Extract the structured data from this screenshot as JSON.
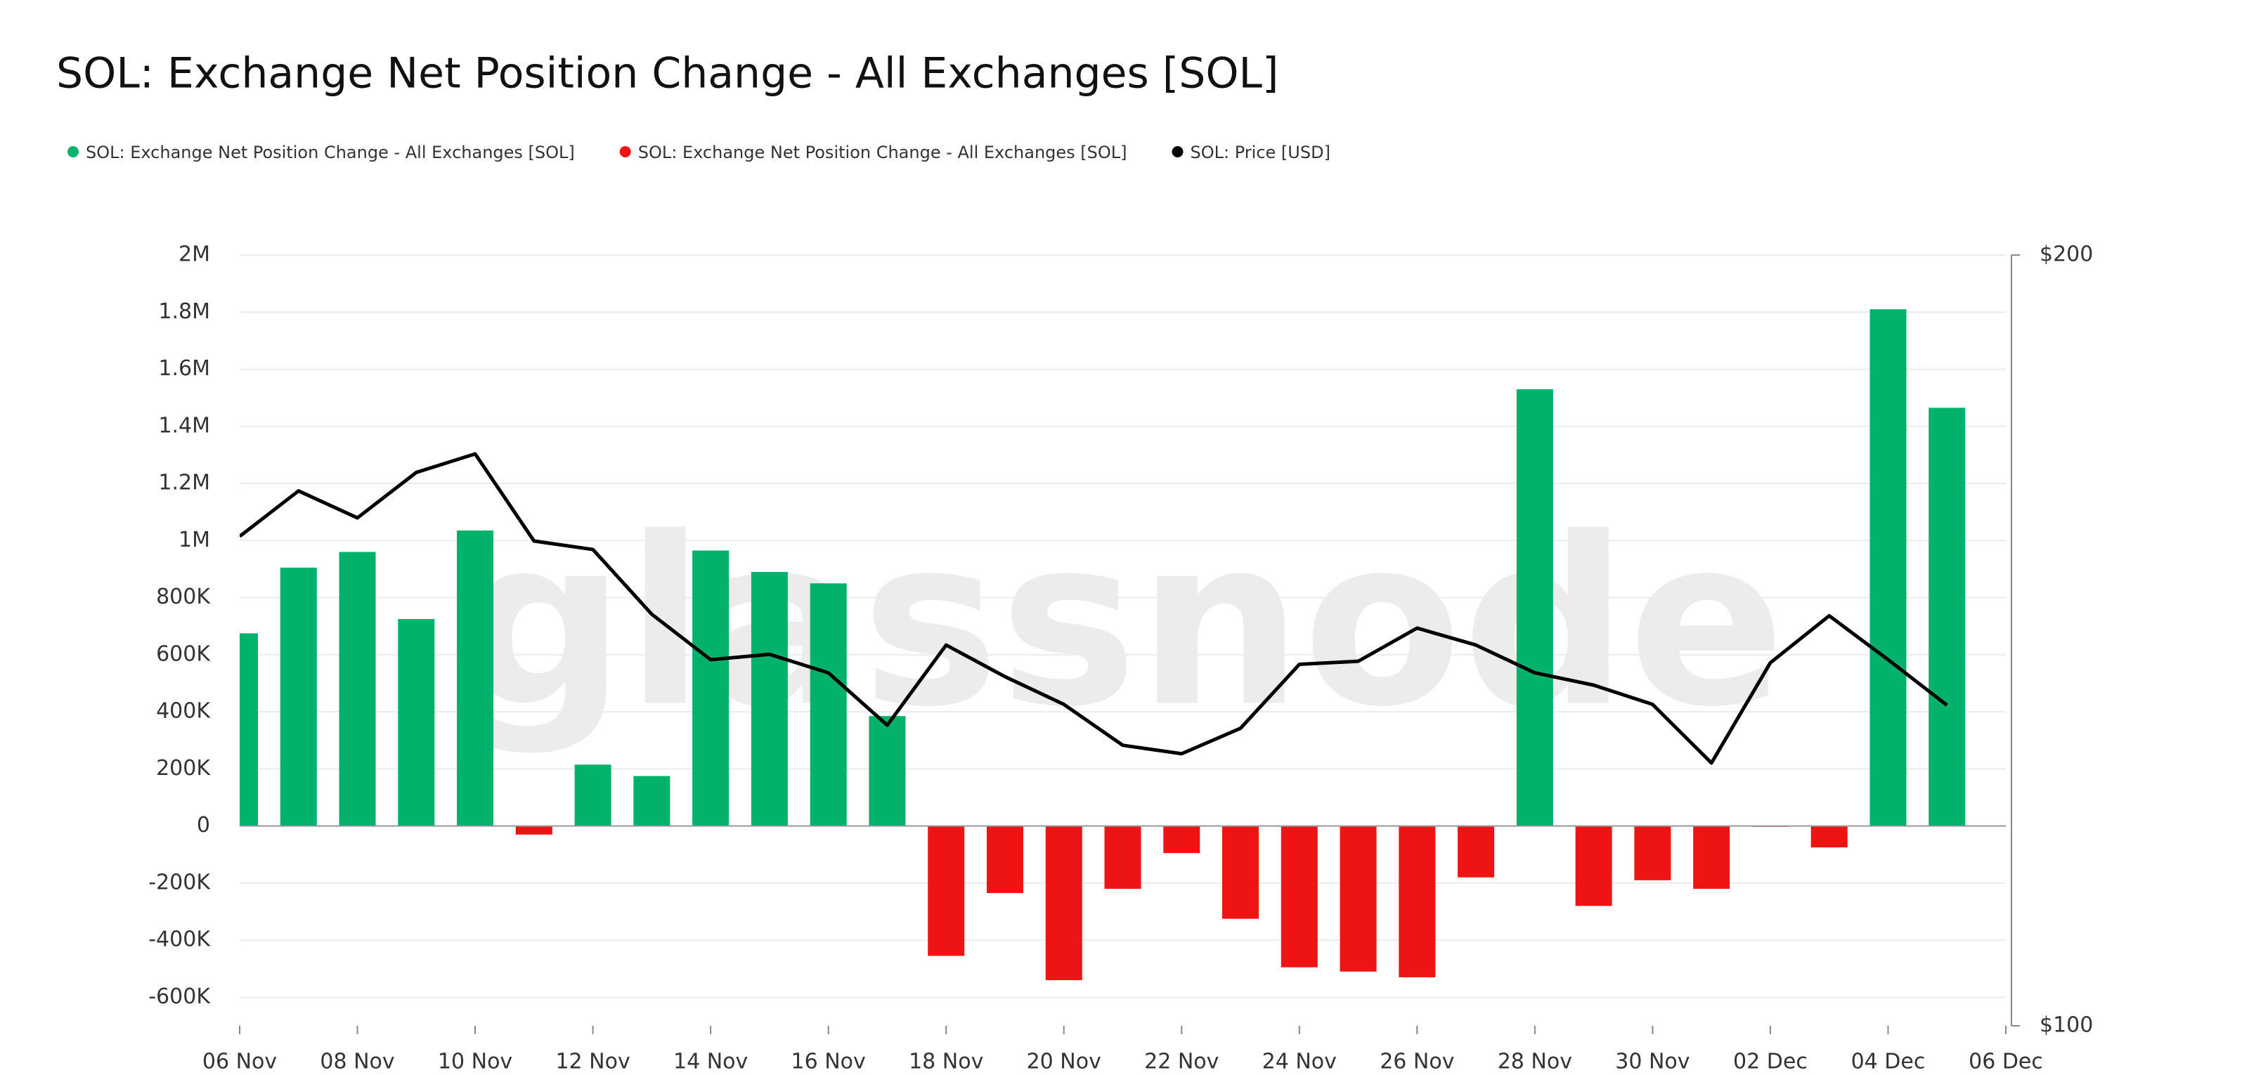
{
  "chart_data": {
    "type": "bar",
    "title": "SOL: Exchange Net Position Change - All Exchanges [SOL]",
    "watermark": "glassnode",
    "categories": [
      "06 Nov",
      null,
      "08 Nov",
      null,
      "10 Nov",
      null,
      "12 Nov",
      null,
      "14 Nov",
      null,
      "16 Nov",
      null,
      "18 Nov",
      null,
      "20 Nov",
      null,
      "22 Nov",
      null,
      "24 Nov",
      null,
      "26 Nov",
      null,
      "28 Nov",
      null,
      "30 Nov",
      null,
      "02 Dec",
      null,
      "04 Dec",
      null,
      "06 Dec"
    ],
    "series": [
      {
        "name": "SOL: Exchange Net Position Change - All Exchanges [SOL]",
        "color": "#02b26a",
        "values": [
          675000,
          905000,
          960000,
          725000,
          1035000,
          null,
          215000,
          175000,
          965000,
          890000,
          850000,
          385000,
          null,
          null,
          null,
          null,
          null,
          null,
          null,
          null,
          null,
          null,
          1530000,
          null,
          null,
          null,
          null,
          null,
          1810000,
          1465000,
          null
        ]
      },
      {
        "name": "SOL: Exchange Net Position Change - All Exchanges [SOL]",
        "color": "#ee1414",
        "values": [
          null,
          null,
          null,
          null,
          null,
          -30000,
          null,
          null,
          null,
          null,
          null,
          null,
          -455000,
          -235000,
          -540000,
          -220000,
          -95000,
          -325000,
          -495000,
          -510000,
          -530000,
          -180000,
          null,
          -280000,
          -190000,
          -220000,
          -3000,
          -75000,
          null,
          null,
          null
        ]
      },
      {
        "name": "SOL: Price [USD]",
        "color": "#000000",
        "type": "line",
        "axis": "y2",
        "values": [
          163.5,
          169.4,
          165.9,
          171.8,
          174.2,
          162.9,
          161.8,
          153.4,
          147.5,
          148.2,
          145.8,
          139.0,
          149.4,
          145.3,
          141.7,
          136.4,
          135.3,
          138.6,
          146.9,
          147.3,
          151.6,
          149.4,
          145.8,
          144.2,
          141.7,
          134.1,
          147.1,
          153.2,
          147.5,
          141.6,
          null
        ]
      }
    ],
    "ylim": [
      -700000,
      2000000
    ],
    "yticks": [
      {
        "value": -600000,
        "label": "-600K"
      },
      {
        "value": -400000,
        "label": "-400K"
      },
      {
        "value": -200000,
        "label": "-200K"
      },
      0,
      {
        "value": 200000,
        "label": "200K"
      },
      {
        "value": 400000,
        "label": "400K"
      },
      {
        "value": 600000,
        "label": "600K"
      },
      {
        "value": 800000,
        "label": "800K"
      },
      {
        "value": 1000000,
        "label": "1M"
      },
      {
        "value": 1200000,
        "label": "1.2M"
      },
      {
        "value": 1400000,
        "label": "1.4M"
      },
      {
        "value": 1600000,
        "label": "1.6M"
      },
      {
        "value": 1800000,
        "label": "1.8M"
      },
      {
        "value": 2000000,
        "label": "2M"
      }
    ],
    "y2lim": [
      100,
      200
    ],
    "y2ticks": [
      {
        "value": 100,
        "label": "$100"
      },
      {
        "value": 200,
        "label": "$200"
      }
    ],
    "grid": true
  }
}
